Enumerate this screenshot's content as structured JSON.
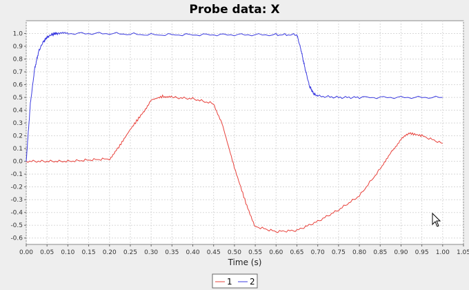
{
  "chart_data": {
    "type": "line",
    "title": "Probe data: X",
    "xlabel": "Time (s)",
    "ylabel": "",
    "xlim": [
      0,
      1.05
    ],
    "ylim": [
      -0.65,
      1.1
    ],
    "grid": true,
    "legend_position": "bottom-center",
    "x_ticks": [
      "0.00",
      "0.05",
      "0.10",
      "0.15",
      "0.20",
      "0.25",
      "0.30",
      "0.35",
      "0.40",
      "0.45",
      "0.50",
      "0.55",
      "0.60",
      "0.65",
      "0.70",
      "0.75",
      "0.80",
      "0.85",
      "0.90",
      "0.95",
      "1.00",
      "1.05"
    ],
    "y_ticks": [
      "-0.6",
      "-0.5",
      "-0.4",
      "-0.3",
      "-0.2",
      "-0.1",
      "0.0",
      "0.1",
      "0.2",
      "0.3",
      "0.4",
      "0.5",
      "0.6",
      "0.7",
      "0.8",
      "0.9",
      "1.0"
    ],
    "series": [
      {
        "name": "1",
        "color": "#e8403a",
        "x": [
          0.0,
          0.05,
          0.1,
          0.15,
          0.2,
          0.22,
          0.25,
          0.28,
          0.3,
          0.33,
          0.35,
          0.4,
          0.45,
          0.47,
          0.5,
          0.53,
          0.55,
          0.6,
          0.65,
          0.7,
          0.75,
          0.8,
          0.85,
          0.88,
          0.9,
          0.92,
          0.95,
          1.0
        ],
        "values": [
          0.0,
          0.0,
          0.0,
          0.01,
          0.02,
          0.1,
          0.25,
          0.38,
          0.48,
          0.51,
          0.5,
          0.49,
          0.45,
          0.3,
          -0.05,
          -0.35,
          -0.51,
          -0.55,
          -0.54,
          -0.47,
          -0.38,
          -0.27,
          -0.06,
          0.09,
          0.17,
          0.22,
          0.2,
          0.14
        ]
      },
      {
        "name": "2",
        "color": "#3a3ae0",
        "x": [
          0.0,
          0.01,
          0.02,
          0.03,
          0.04,
          0.05,
          0.06,
          0.07,
          0.08,
          0.1,
          0.2,
          0.3,
          0.4,
          0.5,
          0.6,
          0.65,
          0.66,
          0.67,
          0.68,
          0.69,
          0.7,
          0.75,
          0.8,
          0.9,
          1.0
        ],
        "values": [
          0.0,
          0.45,
          0.72,
          0.86,
          0.93,
          0.97,
          0.99,
          1.0,
          1.0,
          1.0,
          1.0,
          0.99,
          0.99,
          0.99,
          0.99,
          0.99,
          0.87,
          0.72,
          0.59,
          0.53,
          0.51,
          0.5,
          0.5,
          0.5,
          0.5
        ]
      }
    ]
  },
  "icons": {
    "cursor": "mouse-pointer-icon"
  }
}
